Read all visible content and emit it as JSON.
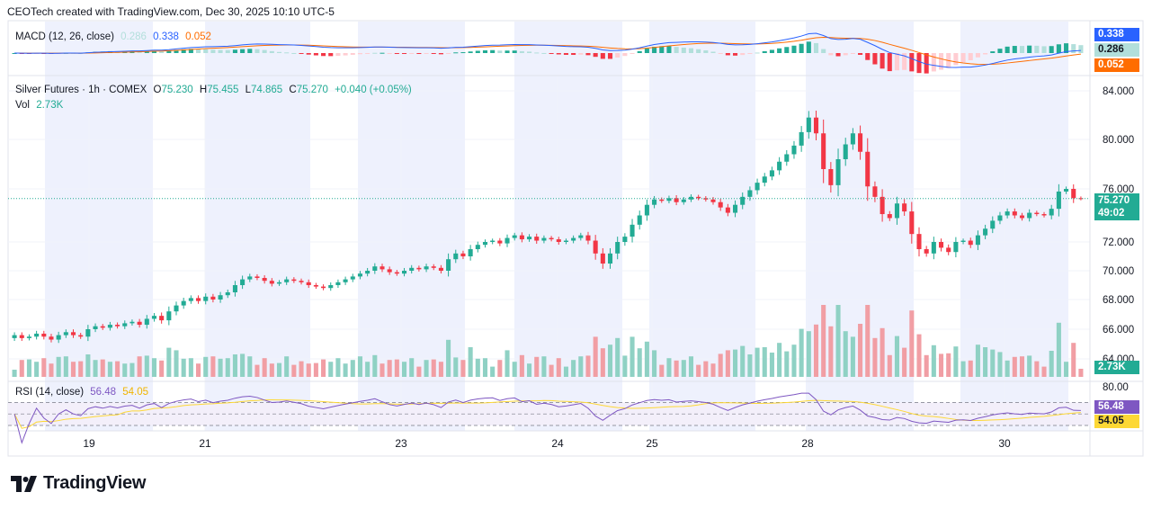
{
  "header": {
    "attribution": "CEOTech created with TradingView.com, Dec 30, 2025 10:10 UTC-5"
  },
  "brand": {
    "name": "TradingView"
  },
  "colors": {
    "up": "#22ab94",
    "down": "#f23645",
    "vol_up": "#8fd1c4",
    "vol_down": "#f19ea4",
    "macd_line": "#2962ff",
    "signal_line": "#ff6d00",
    "hist_pos_strong": "#22ab94",
    "hist_pos_weak": "#b2dfdb",
    "hist_neg_strong": "#f23645",
    "hist_neg_weak": "#ffcdd2",
    "rsi_line": "#7e57c2",
    "rsi_ma": "#fdd835",
    "session_shade": "#eef1fd"
  },
  "macd": {
    "legend": {
      "name": "MACD (12, 26, close)",
      "hist": "0.286",
      "macd": "0.338",
      "signal": "0.052"
    },
    "badges": {
      "macd": "0.338",
      "hist": "0.286",
      "signal": "0.052"
    }
  },
  "price": {
    "legend": {
      "symbol": "Silver Futures · 1h · COMEX",
      "o_label": "O",
      "open": "75.230",
      "h_label": "H",
      "high": "75.455",
      "l_label": "L",
      "low": "74.865",
      "c_label": "C",
      "close": "75.270",
      "change": "+0.040 (+0.05%)"
    },
    "badge_price": "75.270",
    "badge_countdown": "49:02"
  },
  "volume": {
    "legend_label": "Vol",
    "legend_value": "2.73K",
    "badge": "2.73K"
  },
  "rsi": {
    "legend": {
      "name": "RSI (14, close)",
      "rsi": "56.48",
      "ma": "54.05"
    },
    "badges": {
      "rsi": "56.48",
      "ma": "54.05"
    },
    "tick_top": "80.00"
  },
  "x_labels": [
    "19",
    "21",
    "23",
    "24",
    "25",
    "28",
    "30"
  ],
  "chart_data": {
    "type": "candlestick",
    "title": "Silver Futures · 1h · COMEX",
    "ylim": [
      62.5,
      85.5
    ],
    "y_ticks": [
      "84.000",
      "80.000",
      "76.000",
      "72.000",
      "70.000",
      "68.000",
      "66.000",
      "64.000"
    ],
    "y_tick_values": [
      84,
      80,
      76,
      72,
      70,
      68,
      66,
      64
    ],
    "x_tick_dates": [
      "19",
      "21",
      "23",
      "24",
      "25",
      "28",
      "30"
    ],
    "close_series": [
      65.6,
      65.4,
      65.5,
      65.7,
      65.5,
      65.3,
      65.6,
      65.8,
      65.6,
      65.5,
      66.0,
      66.2,
      66.1,
      66.3,
      66.2,
      66.4,
      66.5,
      66.3,
      66.7,
      66.9,
      66.6,
      67.2,
      67.6,
      67.9,
      68.1,
      67.9,
      68.2,
      68.0,
      68.3,
      68.5,
      69.0,
      69.4,
      69.6,
      69.5,
      69.3,
      69.1,
      69.2,
      69.4,
      69.3,
      69.2,
      69.0,
      68.9,
      68.8,
      69.0,
      69.2,
      69.4,
      69.6,
      69.8,
      70.0,
      70.3,
      70.1,
      69.9,
      69.8,
      70.0,
      70.2,
      70.1,
      70.3,
      70.2,
      70.0,
      70.8,
      71.2,
      71.0,
      71.5,
      71.8,
      72.0,
      72.1,
      71.9,
      72.3,
      72.5,
      72.2,
      72.4,
      72.1,
      72.3,
      72.2,
      72.0,
      72.1,
      72.3,
      72.5,
      72.1,
      71.2,
      70.5,
      71.2,
      72.0,
      72.4,
      73.3,
      74.0,
      74.8,
      75.2,
      75.1,
      75.3,
      75.0,
      75.2,
      75.4,
      75.3,
      75.2,
      75.0,
      74.6,
      74.2,
      74.8,
      75.4,
      75.9,
      76.5,
      77.0,
      77.5,
      78.2,
      78.8,
      79.5,
      80.6,
      81.8,
      80.5,
      77.6,
      76.3,
      78.4,
      79.6,
      80.5,
      79.0,
      76.2,
      75.4,
      74.1,
      73.8,
      74.9,
      74.3,
      72.6,
      71.5,
      71.2,
      72.0,
      71.6,
      71.3,
      72.0,
      72.1,
      71.8,
      72.5,
      73.0,
      73.6,
      74.0,
      74.3,
      74.0,
      73.8,
      74.2,
      74.1,
      74.0,
      74.5,
      75.8,
      76.0,
      75.3,
      75.27
    ],
    "last_candle": {
      "open": 75.23,
      "high": 75.455,
      "low": 74.865,
      "close": 75.27
    },
    "volume_last": "2.73K",
    "rsi_last": 56.48,
    "rsi_ma_last": 54.05,
    "macd_last": 0.338,
    "signal_last": 0.052,
    "hist_last": 0.286,
    "grid": true,
    "legend_position": "top-left"
  }
}
